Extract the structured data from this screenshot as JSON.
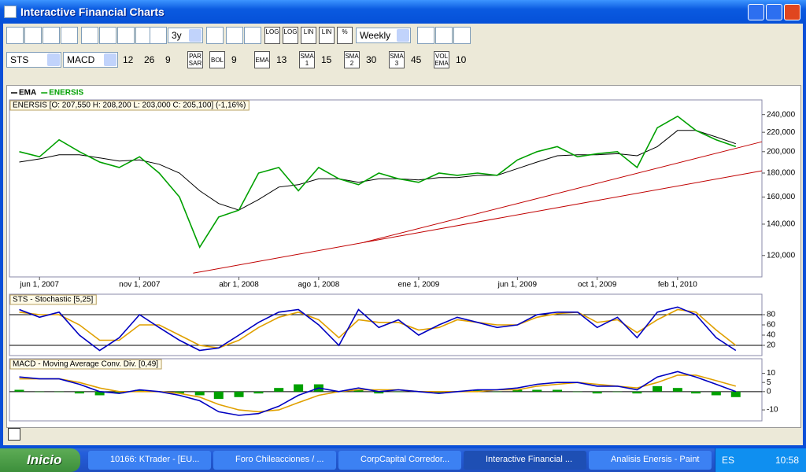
{
  "window": {
    "title": "Interactive Financial Charts"
  },
  "toolbar": {
    "icon_labels": [
      "LOG",
      "LOG",
      "LIN",
      "LIN",
      "%"
    ],
    "period": "3y",
    "interval": "Weekly",
    "oscillator_1": "STS",
    "oscillator_2": "MACD",
    "macd_params": [
      12,
      26,
      9
    ],
    "indicators": [
      {
        "label": "PAR SAR"
      },
      {
        "label": "BOL",
        "param": 9
      },
      {
        "label": "EMA",
        "param": 13
      },
      {
        "label": "SMA 1",
        "param": 15
      },
      {
        "label": "SMA 2",
        "param": 30
      },
      {
        "label": "SMA 3",
        "param": 45
      },
      {
        "label": "VOL EMA",
        "param": 10
      }
    ]
  },
  "chart_data": [
    {
      "type": "line",
      "title": "ENERSIS [O: 207,550  H: 208,200  L: 203,000  C: 205,100] (-1,16%)",
      "x": [
        "2007-05-01",
        "2007-06-01",
        "2007-07-01",
        "2007-08-01",
        "2007-09-01",
        "2007-10-01",
        "2007-11-01",
        "2007-12-01",
        "2008-01-01",
        "2008-02-01",
        "2008-03-01",
        "2008-04-01",
        "2008-05-01",
        "2008-06-01",
        "2008-07-01",
        "2008-08-01",
        "2008-09-01",
        "2008-10-01",
        "2008-11-01",
        "2008-12-01",
        "2009-01-01",
        "2009-02-01",
        "2009-03-01",
        "2009-04-01",
        "2009-05-01",
        "2009-06-01",
        "2009-07-01",
        "2009-08-01",
        "2009-09-01",
        "2009-10-01",
        "2009-11-01",
        "2009-12-01",
        "2010-01-01",
        "2010-02-01",
        "2010-03-01",
        "2010-04-01",
        "2010-05-01"
      ],
      "series": [
        {
          "name": "EMA",
          "color": "#000000",
          "values": [
            190000,
            193000,
            197000,
            197000,
            194000,
            191000,
            192000,
            188000,
            180000,
            165000,
            155000,
            150000,
            158000,
            168000,
            170000,
            175000,
            175000,
            172000,
            175000,
            175000,
            174000,
            176000,
            176000,
            178000,
            178000,
            184000,
            190000,
            196000,
            197000,
            197000,
            198000,
            196000,
            205000,
            222000,
            222000,
            215000,
            208000
          ]
        },
        {
          "name": "ENERSIS",
          "color": "#00a000",
          "values": [
            200000,
            195000,
            212000,
            200000,
            190000,
            185000,
            195000,
            180000,
            160000,
            125000,
            145000,
            150000,
            180000,
            185000,
            165000,
            185000,
            175000,
            170000,
            180000,
            175000,
            172000,
            180000,
            178000,
            180000,
            178000,
            192000,
            200000,
            205000,
            195000,
            198000,
            200000,
            185000,
            225000,
            238000,
            222000,
            212000,
            205000
          ]
        }
      ],
      "trendlines": [
        {
          "color": "#c00000",
          "x": [
            "2008-01-22",
            "2010-06-10"
          ],
          "values": [
            110000,
            182000
          ]
        },
        {
          "color": "#c00000",
          "x": [
            "2008-10-09",
            "2010-06-10"
          ],
          "values": [
            128000,
            210000
          ]
        }
      ],
      "xlim": [
        "2007-04-16",
        "2010-06-10"
      ],
      "xticks": [
        {
          "value": "2007-06-01",
          "label": "jun 1, 2007"
        },
        {
          "value": "2007-11-01",
          "label": "nov 1, 2007"
        },
        {
          "value": "2008-04-01",
          "label": "abr 1, 2008"
        },
        {
          "value": "2008-08-01",
          "label": "ago 1, 2008"
        },
        {
          "value": "2009-01-01",
          "label": "ene 1, 2009"
        },
        {
          "value": "2009-06-01",
          "label": "jun 1, 2009"
        },
        {
          "value": "2009-10-01",
          "label": "oct 1, 2009"
        },
        {
          "value": "2010-02-01",
          "label": "feb 1, 2010"
        }
      ],
      "ylim": [
        108000,
        258000
      ],
      "log_scale": true,
      "yticks": [
        {
          "value": 120000,
          "label": "120,000"
        },
        {
          "value": 140000,
          "label": "140,000"
        },
        {
          "value": 160000,
          "label": "160,000"
        },
        {
          "value": 180000,
          "label": "180,000"
        },
        {
          "value": 200000,
          "label": "200,000"
        },
        {
          "value": 220000,
          "label": "220,000"
        },
        {
          "value": 240000,
          "label": "240,000"
        }
      ],
      "legend": "top-left"
    },
    {
      "type": "line",
      "title": "STS - Stochastic [5,25]",
      "x": [
        "2007-05-01",
        "2007-06-01",
        "2007-07-01",
        "2007-08-01",
        "2007-09-01",
        "2007-10-01",
        "2007-11-01",
        "2007-12-01",
        "2008-01-01",
        "2008-02-01",
        "2008-03-01",
        "2008-04-01",
        "2008-05-01",
        "2008-06-01",
        "2008-07-01",
        "2008-08-01",
        "2008-09-01",
        "2008-10-01",
        "2008-11-01",
        "2008-12-01",
        "2009-01-01",
        "2009-02-01",
        "2009-03-01",
        "2009-04-01",
        "2009-05-01",
        "2009-06-01",
        "2009-07-01",
        "2009-08-01",
        "2009-09-01",
        "2009-10-01",
        "2009-11-01",
        "2009-12-01",
        "2010-01-01",
        "2010-02-01",
        "2010-03-01",
        "2010-04-01",
        "2010-05-01"
      ],
      "series": [
        {
          "color": "#e0a000",
          "values": [
            85,
            80,
            80,
            60,
            30,
            30,
            60,
            60,
            40,
            20,
            15,
            30,
            55,
            75,
            85,
            70,
            35,
            70,
            65,
            65,
            50,
            55,
            70,
            65,
            60,
            60,
            75,
            82,
            85,
            65,
            70,
            45,
            70,
            90,
            85,
            50,
            20
          ]
        },
        {
          "color": "#0000c0",
          "values": [
            90,
            75,
            85,
            40,
            10,
            35,
            80,
            55,
            30,
            10,
            15,
            40,
            65,
            85,
            90,
            60,
            20,
            90,
            55,
            70,
            40,
            60,
            75,
            65,
            55,
            60,
            80,
            85,
            85,
            55,
            75,
            35,
            85,
            95,
            80,
            35,
            10
          ]
        }
      ],
      "reference_lines": [
        80,
        20
      ],
      "xlim": [
        "2007-04-16",
        "2010-06-10"
      ],
      "ylim": [
        0,
        120
      ],
      "yticks": [
        20,
        40,
        60,
        80
      ]
    },
    {
      "type": "line",
      "title": "MACD - Moving Average Conv. Div. [0,49]",
      "x": [
        "2007-05-01",
        "2007-06-01",
        "2007-07-01",
        "2007-08-01",
        "2007-09-01",
        "2007-10-01",
        "2007-11-01",
        "2007-12-01",
        "2008-01-01",
        "2008-02-01",
        "2008-03-01",
        "2008-04-01",
        "2008-05-01",
        "2008-06-01",
        "2008-07-01",
        "2008-08-01",
        "2008-09-01",
        "2008-10-01",
        "2008-11-01",
        "2008-12-01",
        "2009-01-01",
        "2009-02-01",
        "2009-03-01",
        "2009-04-01",
        "2009-05-01",
        "2009-06-01",
        "2009-07-01",
        "2009-08-01",
        "2009-09-01",
        "2009-10-01",
        "2009-11-01",
        "2009-12-01",
        "2010-01-01",
        "2010-02-01",
        "2010-03-01",
        "2010-04-01",
        "2010-05-01"
      ],
      "series": [
        {
          "color": "#00a000",
          "style": "bar",
          "values": [
            1,
            0,
            0,
            -1,
            -2,
            -1,
            1,
            0,
            -1,
            -2,
            -4,
            -3,
            -1,
            2,
            4,
            4,
            0,
            1,
            -1,
            0,
            0,
            -1,
            0,
            1,
            0,
            1,
            1,
            1,
            0,
            -1,
            0,
            -1,
            3,
            2,
            -1,
            -2,
            -3
          ]
        },
        {
          "color": "#e0a000",
          "values": [
            7,
            7,
            7,
            5,
            2,
            0,
            0,
            0,
            -1,
            -3,
            -7,
            -10,
            -11,
            -10,
            -6,
            -2,
            0,
            1,
            1,
            1,
            0,
            0,
            0,
            0,
            1,
            1,
            3,
            4,
            5,
            4,
            3,
            2,
            5,
            9,
            9,
            6,
            3
          ]
        },
        {
          "color": "#0000c0",
          "values": [
            8,
            7,
            7,
            4,
            0,
            -1,
            1,
            0,
            -2,
            -5,
            -11,
            -13,
            -12,
            -8,
            -2,
            2,
            0,
            2,
            0,
            1,
            0,
            -1,
            0,
            1,
            1,
            2,
            4,
            5,
            5,
            3,
            3,
            1,
            8,
            11,
            8,
            4,
            0
          ]
        }
      ],
      "reference_lines": [
        0
      ],
      "xlim": [
        "2007-04-16",
        "2010-06-10"
      ],
      "ylim": [
        -16,
        18
      ],
      "yticks": [
        -10,
        0,
        5,
        10
      ]
    }
  ],
  "taskbar": {
    "start": "Inicio",
    "tasks": [
      "10166: KTrader - [EU...",
      "Foro Chileacciones / ...",
      "CorpCapital Corredor...",
      "Interactive Financial ...",
      "Analisis Enersis - Paint"
    ],
    "language": "ES",
    "clock": "10:58"
  }
}
